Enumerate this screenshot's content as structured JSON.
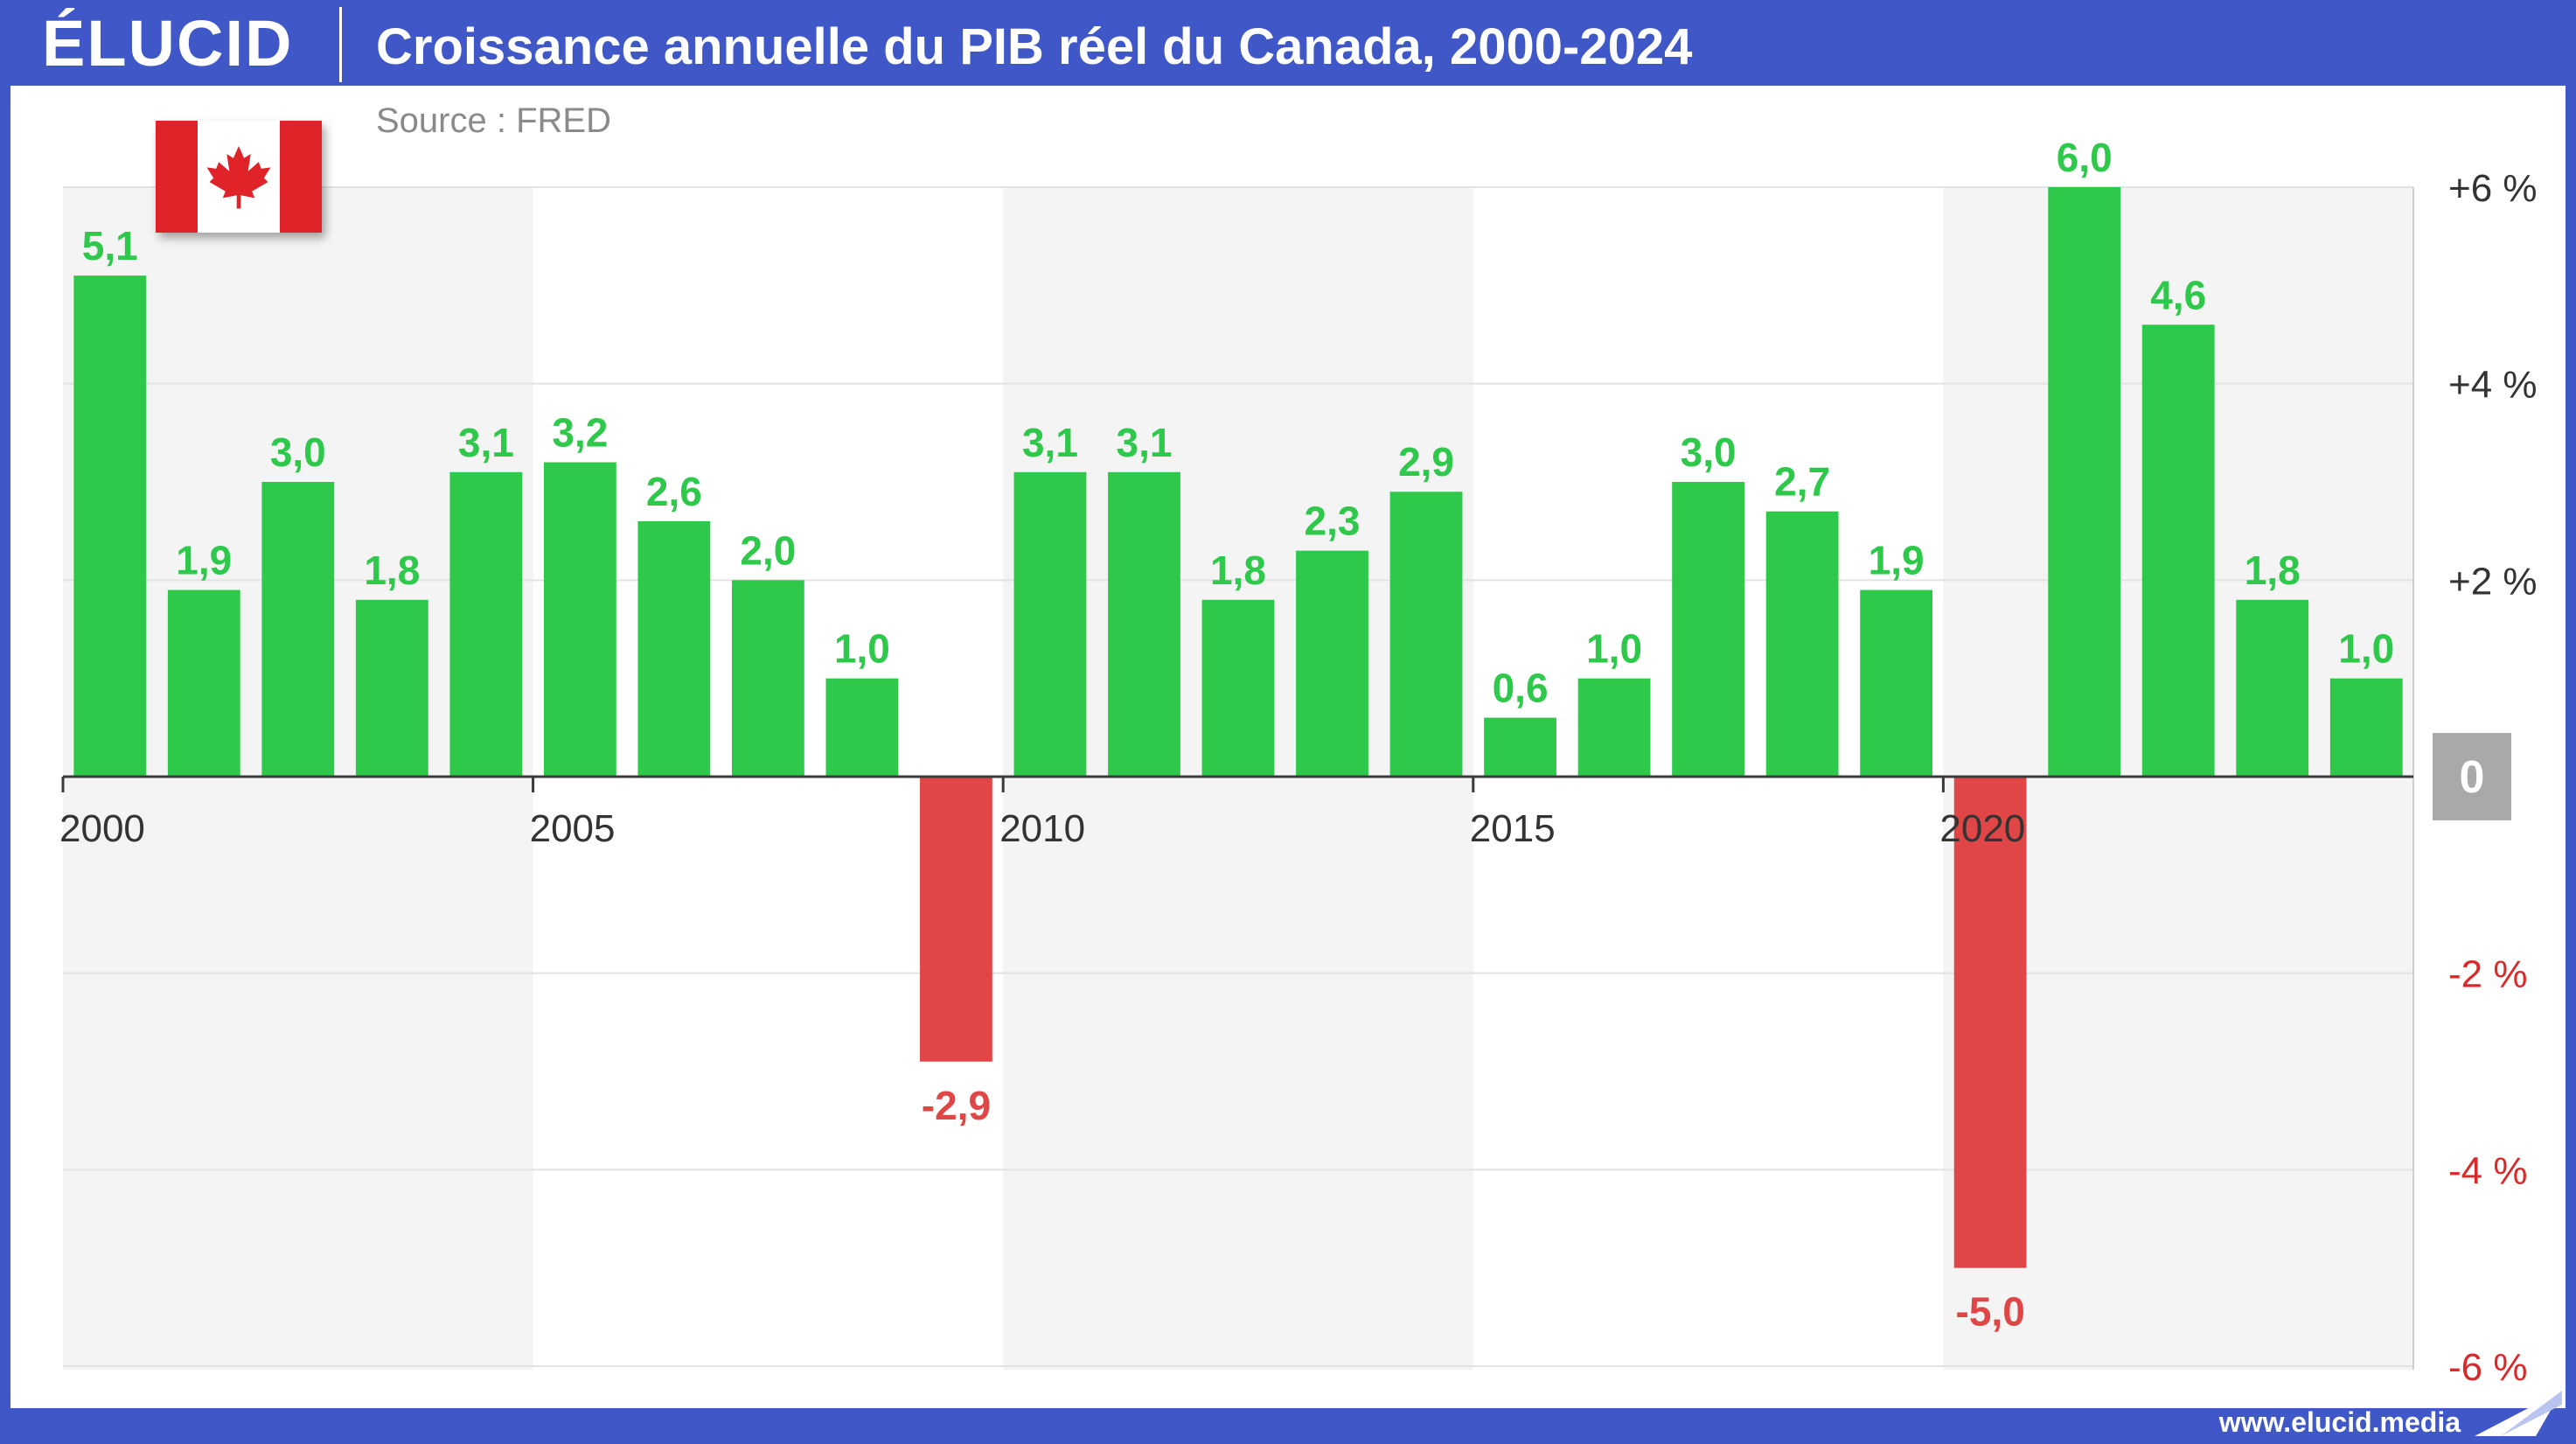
{
  "header": {
    "brand": "ÉLUCID",
    "title": "Croissance annuelle du PIB réel du Canada, 2000-2024",
    "source": "Source : FRED"
  },
  "flag": {
    "icon": "canada-flag-icon",
    "colors": {
      "red": "#e02229",
      "white": "#ffffff"
    }
  },
  "footer": {
    "url": "www.elucid.media"
  },
  "colors": {
    "positive": "#2ec84a",
    "negative": "#e04646",
    "band": "#f4f4f4",
    "brand_blue": "#3f57c7",
    "zero_badge": "#a9a9a9"
  },
  "chart_data": {
    "type": "bar",
    "title": "Croissance annuelle du PIB réel du Canada, 2000-2024",
    "categories": [
      "2000",
      "2001",
      "2002",
      "2003",
      "2004",
      "2005",
      "2006",
      "2007",
      "2008",
      "2009",
      "2010",
      "2011",
      "2012",
      "2013",
      "2014",
      "2015",
      "2016",
      "2017",
      "2018",
      "2019",
      "2020",
      "2021",
      "2022",
      "2023",
      "2024"
    ],
    "values": [
      5.1,
      1.9,
      3.0,
      1.8,
      3.1,
      3.2,
      2.6,
      2.0,
      1.0,
      -2.9,
      3.1,
      3.1,
      1.8,
      2.3,
      2.9,
      0.6,
      1.0,
      3.0,
      2.7,
      1.9,
      -5.0,
      6.0,
      4.6,
      1.8,
      1.0
    ],
    "value_labels": [
      "5,1",
      "1,9",
      "3,0",
      "1,8",
      "3,1",
      "3,2",
      "2,6",
      "2,0",
      "1,0",
      "-2,9",
      "3,1",
      "3,1",
      "1,8",
      "2,3",
      "2,9",
      "0,6",
      "1,0",
      "3,0",
      "2,7",
      "1,9",
      "-5,0",
      "6,0",
      "4,6",
      "1,8",
      "1,0"
    ],
    "x_tick_labels": [
      "2000",
      "2005",
      "2010",
      "2015",
      "2020"
    ],
    "y_ticks": [
      {
        "value": 6,
        "label": "+6 %"
      },
      {
        "value": 4,
        "label": "+4 %"
      },
      {
        "value": 2,
        "label": "+2 %"
      },
      {
        "value": 0,
        "label": "0"
      },
      {
        "value": -2,
        "label": "-2 %"
      },
      {
        "value": -4,
        "label": "-4 %"
      },
      {
        "value": -6,
        "label": "-6 %"
      }
    ],
    "ylim": [
      -6,
      6
    ],
    "grid": true,
    "legend": "none"
  }
}
